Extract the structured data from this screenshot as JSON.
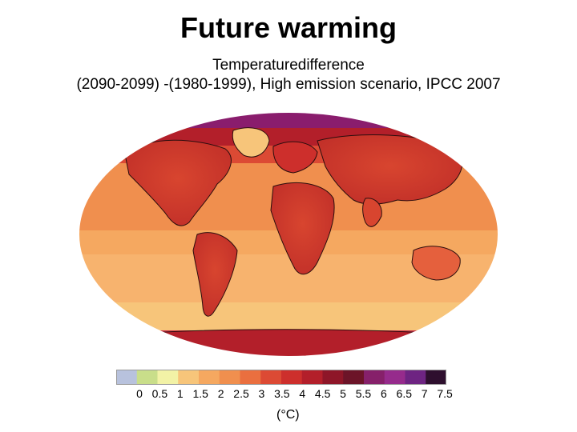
{
  "slide": {
    "title": "Future warming",
    "subtitle_line1": "Temperaturedifference",
    "subtitle_line2": "(2090-2099) -(1980-1999), High emission scenario, IPCC 2007"
  },
  "legend": {
    "unit": "(°C)",
    "tick_labels": [
      "0",
      "0.5",
      "1",
      "1.5",
      "2",
      "2.5",
      "3",
      "3.5",
      "4",
      "4.5",
      "5",
      "5.5",
      "6",
      "6.5",
      "7",
      "7.5"
    ],
    "swatch_colors": [
      "#b8c2dd",
      "#c9de8a",
      "#f2f2a6",
      "#f7c57a",
      "#f5a860",
      "#f08f4e",
      "#ea6f3f",
      "#dc4a34",
      "#cd2f2c",
      "#b31f2a",
      "#8e1628",
      "#6c1428",
      "#86206a",
      "#962b8c",
      "#6e2482",
      "#2e0f2e"
    ]
  },
  "map": {
    "variable": "temperature difference",
    "scenario": "High emission scenario",
    "source": "IPCC 2007"
  }
}
